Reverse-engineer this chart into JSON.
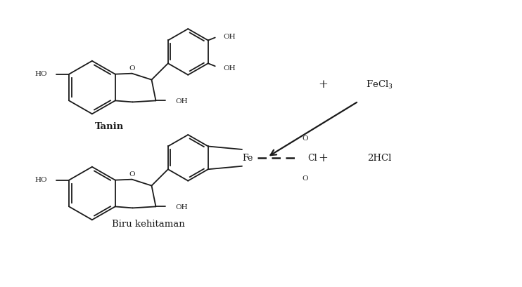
{
  "bg_color": "#ffffff",
  "line_color": "#1a1a1a",
  "figsize": [
    7.42,
    4.1
  ],
  "dpi": 100,
  "title_tanin": "Tanin",
  "title_product": "Biru kehitaman",
  "label_plus1": "+",
  "label_fecl3": "FeCl$_3$",
  "label_plus2": "+",
  "label_2hcl": "2HCl"
}
